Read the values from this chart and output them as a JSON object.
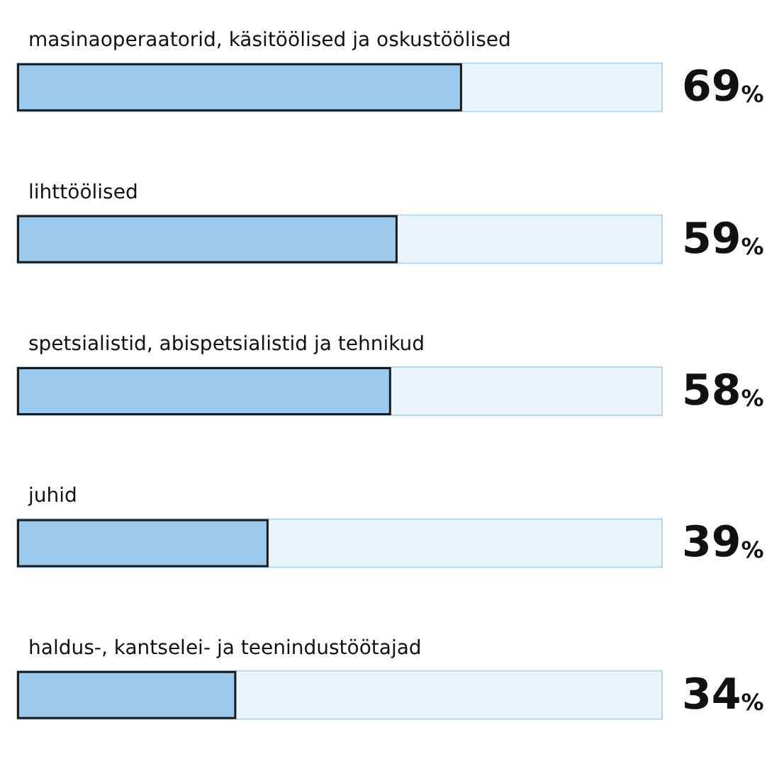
{
  "chart_data": {
    "type": "bar",
    "orientation": "horizontal",
    "categories": [
      "masinaoperaatorid, käsitöölised ja oskustöölised",
      "lihttöölised",
      "spetsialistid, abispetsialistid ja tehnikud",
      "juhid",
      "haldus-, kantselei- ja teenindustöötajad"
    ],
    "values": [
      69,
      59,
      58,
      39,
      34
    ],
    "value_labels": [
      "69%",
      "59%",
      "58%",
      "39%",
      "34%"
    ],
    "color": "#9ccaee",
    "xlim": [
      0,
      100
    ]
  }
}
